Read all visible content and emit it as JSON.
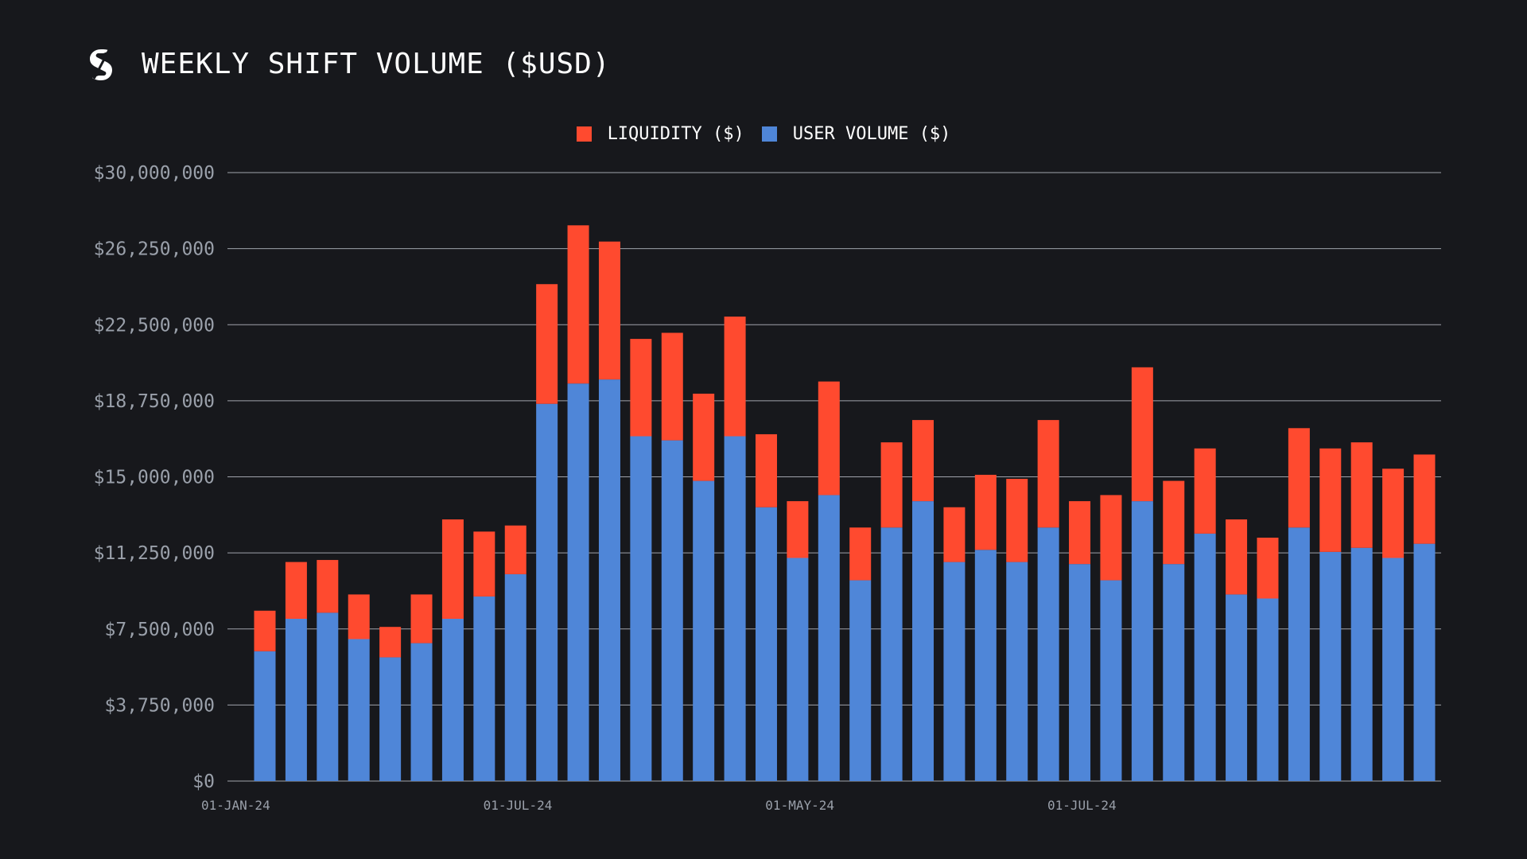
{
  "header": {
    "title": "WEEKLY SHIFT VOLUME ($USD)",
    "logo_icon": "sideshift-logo-icon"
  },
  "colors": {
    "background": "#17181c",
    "liquidity": "#ff4a2f",
    "user_volume": "#4f86d8",
    "grid": "#b8bcc4",
    "tick_text": "#9aa0aa"
  },
  "chart_data": {
    "type": "bar",
    "stacked": true,
    "title": "WEEKLY SHIFT VOLUME ($USD)",
    "xlabel": "",
    "ylabel": "",
    "ylim": [
      0,
      30000000
    ],
    "grid": true,
    "legend_position": "top-center",
    "y_ticks": [
      0,
      3750000,
      7500000,
      11250000,
      15000000,
      18750000,
      22500000,
      26250000,
      30000000
    ],
    "y_tick_labels": [
      "$0",
      "$3,750,000",
      "$7,500,000",
      "$11,250,000",
      "$15,000,000",
      "$18,750,000",
      "$22,500,000",
      "$26,250,000",
      "$30,000,000"
    ],
    "x_tick_labels": [
      {
        "index": 0,
        "label": "01-JAN-24"
      },
      {
        "index": 9,
        "label": "01-JUL-24"
      },
      {
        "index": 18,
        "label": "01-MAY-24"
      },
      {
        "index": 27,
        "label": "01-JUL-24"
      }
    ],
    "series": [
      {
        "name": "USER VOLUME ($)",
        "color": "#4f86d8",
        "values": [
          6400000,
          8000000,
          8300000,
          7000000,
          6100000,
          6800000,
          8000000,
          9100000,
          10200000,
          18600000,
          19600000,
          19800000,
          17000000,
          16800000,
          14800000,
          17000000,
          13500000,
          11000000,
          14100000,
          9900000,
          12500000,
          13800000,
          10800000,
          11400000,
          10800000,
          12500000,
          10700000,
          9900000,
          13800000,
          10700000,
          12200000,
          9200000,
          9000000,
          12500000,
          11300000,
          11500000,
          11000000,
          11700000
        ]
      },
      {
        "name": "LIQUIDITY ($)",
        "color": "#ff4a2f",
        "values": [
          2000000,
          2800000,
          2600000,
          2200000,
          1500000,
          2400000,
          4900000,
          3200000,
          2400000,
          5900000,
          7800000,
          6800000,
          4800000,
          5300000,
          4300000,
          5900000,
          3600000,
          2800000,
          5600000,
          2600000,
          4200000,
          4000000,
          2700000,
          3700000,
          4100000,
          5300000,
          3100000,
          4200000,
          6600000,
          4100000,
          4200000,
          3700000,
          3000000,
          4900000,
          5100000,
          5200000,
          4400000,
          4400000
        ]
      }
    ]
  }
}
